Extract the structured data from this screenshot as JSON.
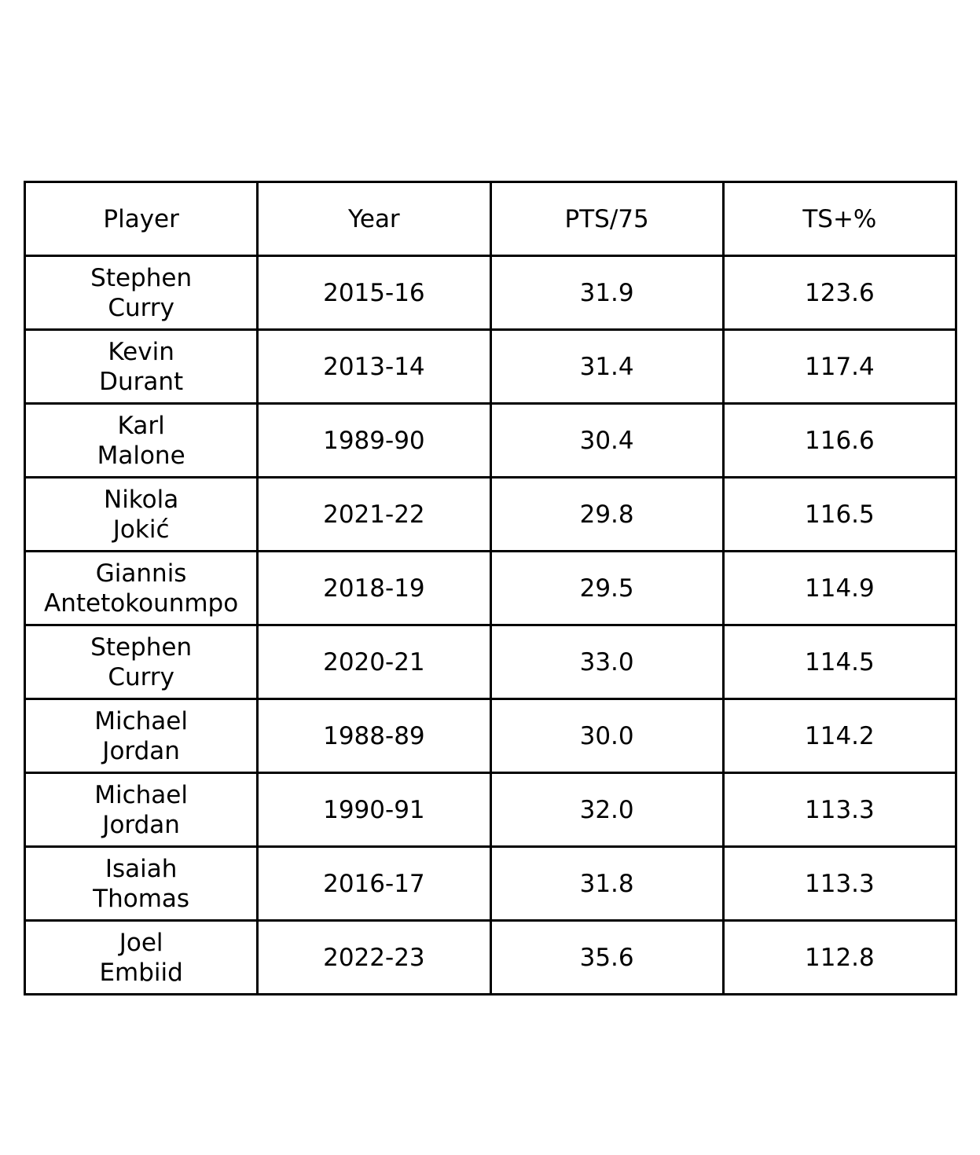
{
  "chart_data": {
    "type": "table",
    "columns": [
      "Player",
      "Year",
      "PTS/75",
      "TS+%"
    ],
    "rows": [
      {
        "player": [
          "Stephen",
          "Curry"
        ],
        "year": "2015-16",
        "pts75": "31.9",
        "tsplus": "123.6"
      },
      {
        "player": [
          "Kevin",
          "Durant"
        ],
        "year": "2013-14",
        "pts75": "31.4",
        "tsplus": "117.4"
      },
      {
        "player": [
          "Karl",
          "Malone"
        ],
        "year": "1989-90",
        "pts75": "30.4",
        "tsplus": "116.6"
      },
      {
        "player": [
          "Nikola",
          "Jokić"
        ],
        "year": "2021-22",
        "pts75": "29.8",
        "tsplus": "116.5"
      },
      {
        "player": [
          "Giannis",
          "Antetokounmpo"
        ],
        "year": "2018-19",
        "pts75": "29.5",
        "tsplus": "114.9"
      },
      {
        "player": [
          "Stephen",
          "Curry"
        ],
        "year": "2020-21",
        "pts75": "33.0",
        "tsplus": "114.5"
      },
      {
        "player": [
          "Michael",
          "Jordan"
        ],
        "year": "1988-89",
        "pts75": "30.0",
        "tsplus": "114.2"
      },
      {
        "player": [
          "Michael",
          "Jordan"
        ],
        "year": "1990-91",
        "pts75": "32.0",
        "tsplus": "113.3"
      },
      {
        "player": [
          "Isaiah",
          "Thomas"
        ],
        "year": "2016-17",
        "pts75": "31.8",
        "tsplus": "113.3"
      },
      {
        "player": [
          "Joel",
          "Embiid"
        ],
        "year": "2022-23",
        "pts75": "35.6",
        "tsplus": "112.8"
      }
    ]
  }
}
